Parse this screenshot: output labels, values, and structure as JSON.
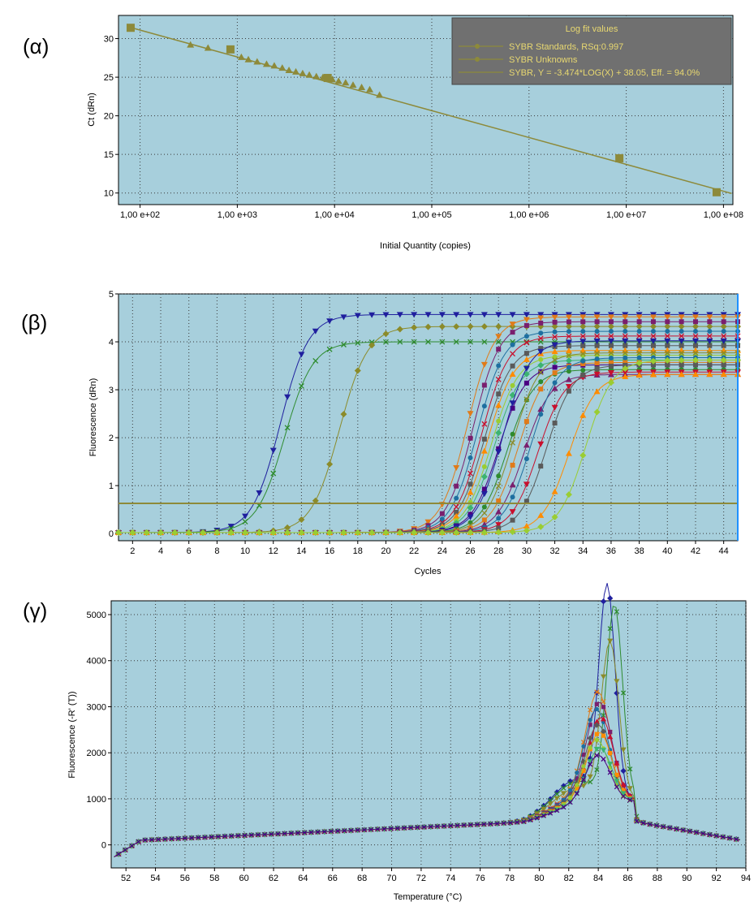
{
  "colors": {
    "plot_bg": "#a7cfdc",
    "grid": "#3a3a3a",
    "fit_line": "#8d8a3a",
    "legend_bg": "#707070",
    "legend_text": "#e8d870",
    "palette": [
      "#1f1f9e",
      "#2e8b2e",
      "#8b8b2a",
      "#e07b1a",
      "#7a1f6e",
      "#1e6fa0",
      "#c8102e",
      "#5a5a5a",
      "#ff8c00",
      "#9acd32",
      "#3cb371",
      "#4b0082"
    ]
  },
  "chart_data": [
    {
      "id": "alpha",
      "panel_label": "(α)",
      "type": "scatter",
      "log_x": true,
      "xlabel": "Initial Quantity (copies)",
      "ylabel": "Ct (dRn)",
      "xlim": [
        60,
        125000000
      ],
      "ylim": [
        8.5,
        33
      ],
      "x_ticks": [
        100,
        1000,
        10000,
        100000,
        1000000,
        10000000,
        100000000
      ],
      "x_tick_labels": [
        "1,00 e+02",
        "1,00 e+03",
        "1,00 e+04",
        "1,00 e+05",
        "1,00 e+06",
        "1,00 e+07",
        "1,00 e+08"
      ],
      "y_ticks": [
        10,
        15,
        20,
        25,
        30
      ],
      "y_tick_labels": [
        "10",
        "15",
        "20",
        "25",
        "30"
      ],
      "grid": true,
      "legend_title": "Log fit values",
      "legend_placement": "top-right",
      "series": [
        {
          "name": "SYBR Standards, RSq:0.997",
          "marker": "square",
          "x": [
            80,
            850,
            8500,
            8500000,
            85000000
          ],
          "y": [
            31.4,
            28.6,
            24.9,
            14.5,
            10.1
          ]
        },
        {
          "name": "SYBR Unknowns",
          "marker": "triangle",
          "x": [
            330,
            500,
            1100,
            1300,
            1600,
            2000,
            2400,
            2900,
            3400,
            4000,
            4700,
            5500,
            6500,
            7600,
            9500,
            11000,
            13000,
            15500,
            19000,
            23000,
            29000
          ],
          "y": [
            29.2,
            28.8,
            27.6,
            27.3,
            27.0,
            26.7,
            26.5,
            26.2,
            25.9,
            25.7,
            25.5,
            25.3,
            25.1,
            25.0,
            24.7,
            24.5,
            24.3,
            24.0,
            23.7,
            23.4,
            22.7
          ]
        },
        {
          "name": "SYBR, Y = -3.474*LOG(X) + 38.05, Eff. = 94.0%",
          "marker": "line",
          "slope": -3.474,
          "intercept": 38.05
        }
      ]
    },
    {
      "id": "beta",
      "panel_label": "(β)",
      "type": "line",
      "xlabel": "Cycles",
      "ylabel": "Fluorescence (dRn)",
      "xlim": [
        1,
        45
      ],
      "ylim": [
        -0.15,
        5
      ],
      "x_ticks": [
        2,
        4,
        6,
        8,
        10,
        12,
        14,
        16,
        18,
        20,
        22,
        24,
        26,
        28,
        30,
        32,
        34,
        36,
        38,
        40,
        42,
        44
      ],
      "y_ticks": [
        0,
        1,
        2,
        3,
        4,
        5
      ],
      "grid": true,
      "threshold": 0.63,
      "cursor_cycle": 45,
      "curve_model": "fluorescence = plateau / (1 + exp(-(cycle - midpoint) / slope))",
      "series": [
        {
          "midpoint": 12.5,
          "plateau": 4.55,
          "slope": 1.0,
          "marker": "tri-down"
        },
        {
          "midpoint": 12.8,
          "plateau": 3.98,
          "slope": 1.0,
          "marker": "x"
        },
        {
          "midpoint": 16.7,
          "plateau": 4.3,
          "slope": 1.0,
          "marker": "diamond"
        },
        {
          "midpoint": 25.8,
          "plateau": 4.5,
          "slope": 0.95,
          "marker": "tri-down"
        },
        {
          "midpoint": 26.2,
          "plateau": 4.4,
          "slope": 0.95,
          "marker": "square"
        },
        {
          "midpoint": 26.5,
          "plateau": 4.2,
          "slope": 0.95,
          "marker": "circle"
        },
        {
          "midpoint": 26.8,
          "plateau": 4.1,
          "slope": 0.95,
          "marker": "x"
        },
        {
          "midpoint": 27.0,
          "plateau": 3.9,
          "slope": 0.95,
          "marker": "square"
        },
        {
          "midpoint": 27.2,
          "plateau": 3.8,
          "slope": 0.95,
          "marker": "tri-up"
        },
        {
          "midpoint": 27.5,
          "plateau": 3.7,
          "slope": 0.95,
          "marker": "circle"
        },
        {
          "midpoint": 27.7,
          "plateau": 3.6,
          "slope": 0.95,
          "marker": "diamond"
        },
        {
          "midpoint": 28.0,
          "plateau": 3.5,
          "slope": 0.95,
          "marker": "square"
        },
        {
          "midpoint": 28.3,
          "plateau": 4.0,
          "slope": 0.95,
          "marker": "tri-down"
        },
        {
          "midpoint": 28.6,
          "plateau": 3.4,
          "slope": 0.95,
          "marker": "circle"
        },
        {
          "midpoint": 29.0,
          "plateau": 3.75,
          "slope": 0.95,
          "marker": "x"
        },
        {
          "midpoint": 29.4,
          "plateau": 3.55,
          "slope": 0.95,
          "marker": "square"
        },
        {
          "midpoint": 29.8,
          "plateau": 3.3,
          "slope": 0.95,
          "marker": "tri-up"
        },
        {
          "midpoint": 30.3,
          "plateau": 3.65,
          "slope": 0.95,
          "marker": "circle"
        },
        {
          "midpoint": 30.8,
          "plateau": 3.35,
          "slope": 0.95,
          "marker": "tri-down"
        },
        {
          "midpoint": 31.4,
          "plateau": 3.5,
          "slope": 0.95,
          "marker": "square"
        },
        {
          "midpoint": 33.0,
          "plateau": 3.3,
          "slope": 0.95,
          "marker": "tri-up"
        },
        {
          "midpoint": 34.2,
          "plateau": 3.6,
          "slope": 0.95,
          "marker": "diamond"
        }
      ]
    },
    {
      "id": "gamma",
      "panel_label": "(γ)",
      "type": "line",
      "xlabel": "Temperature (°C)",
      "ylabel": "Fluorescence (-R' (T))",
      "xlim": [
        51,
        94
      ],
      "ylim": [
        -500,
        5300
      ],
      "x_ticks": [
        52,
        54,
        56,
        58,
        60,
        62,
        64,
        66,
        68,
        70,
        72,
        74,
        76,
        78,
        80,
        82,
        84,
        86,
        88,
        90,
        92,
        94
      ],
      "y_ticks": [
        0,
        1000,
        2000,
        3000,
        4000,
        5000
      ],
      "grid": true,
      "curve_model": "baseline + peak * exp(-((T - peak_temp)^2) / (2 * width^2))",
      "series": [
        {
          "peak_temp": 84.6,
          "peak": 4550,
          "width": 0.55,
          "marker": "diamond"
        },
        {
          "peak_temp": 85.1,
          "peak": 4200,
          "width": 0.55,
          "marker": "x"
        },
        {
          "peak_temp": 84.8,
          "peak": 3400,
          "width": 0.6,
          "marker": "tri-down"
        },
        {
          "peak_temp": 84.0,
          "peak": 2300,
          "width": 0.85,
          "marker": "x"
        },
        {
          "peak_temp": 84.1,
          "peak": 2100,
          "width": 0.85,
          "marker": "square"
        },
        {
          "peak_temp": 83.9,
          "peak": 1950,
          "width": 0.85,
          "marker": "circle"
        },
        {
          "peak_temp": 84.2,
          "peak": 1800,
          "width": 0.85,
          "marker": "tri-up"
        },
        {
          "peak_temp": 84.0,
          "peak": 1650,
          "width": 0.85,
          "marker": "diamond"
        },
        {
          "peak_temp": 84.1,
          "peak": 1500,
          "width": 0.85,
          "marker": "square"
        },
        {
          "peak_temp": 83.9,
          "peak": 1350,
          "width": 0.85,
          "marker": "circle"
        },
        {
          "peak_temp": 84.1,
          "peak": 1200,
          "width": 0.85,
          "marker": "tri-down"
        },
        {
          "peak_temp": 84.0,
          "peak": 1050,
          "width": 0.85,
          "marker": "x"
        }
      ]
    }
  ]
}
